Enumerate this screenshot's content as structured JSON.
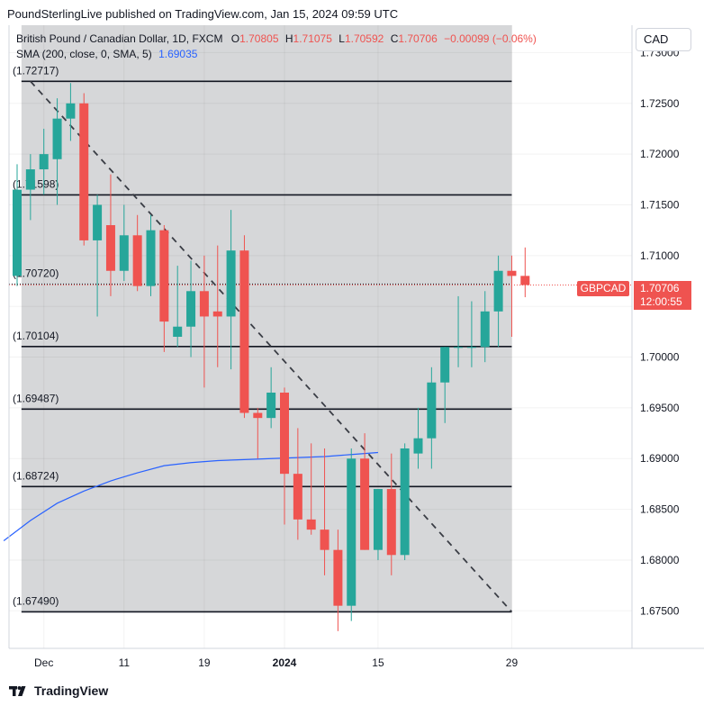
{
  "header": {
    "publisher_line": "PoundSterlingLive published on TradingView.com, Jan 15, 2024 09:59 UTC"
  },
  "legend": {
    "title": "British Pound / Canadian Dollar, 1D, FXCM",
    "o_label": "O",
    "o_value": "1.70805",
    "h_label": "H",
    "h_value": "1.71075",
    "l_label": "L",
    "l_value": "1.70592",
    "c_label": "C",
    "c_value": "1.70706",
    "change": "−0.00099 (−0.06%)",
    "sma_label": "SMA (200, close, 0, SMA, 5)",
    "sma_value": "1.69035"
  },
  "currency_button": "CAD",
  "price_tag": {
    "symbol": "GBPCAD",
    "price": "1.70706",
    "countdown": "12:00:55"
  },
  "footer": {
    "brand": "TradingView"
  },
  "colors": {
    "up": "#26a69a",
    "down": "#ef5350",
    "sma": "#2962ff",
    "shade": "#d6d7d9",
    "level": "#131722"
  },
  "chart_data": {
    "type": "candlestick",
    "y_ticks": [
      "1.73000",
      "1.72500",
      "1.72000",
      "1.71500",
      "1.71000",
      "1.70500",
      "1.70000",
      "1.69500",
      "1.69000",
      "1.68500",
      "1.68000",
      "1.67500"
    ],
    "ylim": [
      1.6713,
      1.7327
    ],
    "x_ticks": [
      {
        "label": "Dec",
        "index": 2
      },
      {
        "label": "11",
        "index": 8
      },
      {
        "label": "19",
        "index": 14
      },
      {
        "label": "2024",
        "index": 20
      },
      {
        "label": "15",
        "index": 27
      },
      {
        "label": "29",
        "index": 37
      }
    ],
    "horizontal_levels": [
      {
        "label": "(1.72717)",
        "value": 1.72717
      },
      {
        "label": "(1.71598)",
        "value": 1.71598
      },
      {
        "label": "(1.70720)",
        "value": 1.7072
      },
      {
        "label": "(1.70104)",
        "value": 1.70104
      },
      {
        "label": "(1.69487)",
        "value": 1.69487
      },
      {
        "label": "(1.68724)",
        "value": 1.68724
      },
      {
        "label": "(1.67490)",
        "value": 1.6749
      }
    ],
    "trendline": {
      "start": {
        "index": 1,
        "value": 1.72717
      },
      "end": {
        "index": 37,
        "value": 1.6749
      }
    },
    "candles": [
      {
        "o": 1.708,
        "h": 1.719,
        "l": 1.707,
        "c": 1.7165
      },
      {
        "o": 1.7165,
        "h": 1.72,
        "l": 1.7135,
        "c": 1.7185
      },
      {
        "o": 1.7185,
        "h": 1.7225,
        "l": 1.716,
        "c": 1.72
      },
      {
        "o": 1.7195,
        "h": 1.7255,
        "l": 1.715,
        "c": 1.7235
      },
      {
        "o": 1.7235,
        "h": 1.727,
        "l": 1.7213,
        "c": 1.725
      },
      {
        "o": 1.725,
        "h": 1.726,
        "l": 1.711,
        "c": 1.7115
      },
      {
        "o": 1.7115,
        "h": 1.716,
        "l": 1.704,
        "c": 1.715
      },
      {
        "o": 1.713,
        "h": 1.718,
        "l": 1.706,
        "c": 1.7085
      },
      {
        "o": 1.7085,
        "h": 1.715,
        "l": 1.7075,
        "c": 1.712
      },
      {
        "o": 1.712,
        "h": 1.714,
        "l": 1.7065,
        "c": 1.707
      },
      {
        "o": 1.707,
        "h": 1.714,
        "l": 1.706,
        "c": 1.7125
      },
      {
        "o": 1.7125,
        "h": 1.713,
        "l": 1.7005,
        "c": 1.7035
      },
      {
        "o": 1.702,
        "h": 1.709,
        "l": 1.701,
        "c": 1.703
      },
      {
        "o": 1.703,
        "h": 1.7095,
        "l": 1.7,
        "c": 1.7065
      },
      {
        "o": 1.7065,
        "h": 1.71,
        "l": 1.697,
        "c": 1.704
      },
      {
        "o": 1.7045,
        "h": 1.711,
        "l": 1.699,
        "c": 1.704
      },
      {
        "o": 1.704,
        "h": 1.7145,
        "l": 1.6988,
        "c": 1.7105
      },
      {
        "o": 1.7105,
        "h": 1.712,
        "l": 1.694,
        "c": 1.6945
      },
      {
        "o": 1.6945,
        "h": 1.695,
        "l": 1.69,
        "c": 1.694
      },
      {
        "o": 1.694,
        "h": 1.699,
        "l": 1.693,
        "c": 1.6965
      },
      {
        "o": 1.6965,
        "h": 1.697,
        "l": 1.6835,
        "c": 1.6885
      },
      {
        "o": 1.6885,
        "h": 1.693,
        "l": 1.682,
        "c": 1.684
      },
      {
        "o": 1.684,
        "h": 1.6915,
        "l": 1.6825,
        "c": 1.683
      },
      {
        "o": 1.683,
        "h": 1.691,
        "l": 1.6785,
        "c": 1.681
      },
      {
        "o": 1.681,
        "h": 1.683,
        "l": 1.673,
        "c": 1.6755
      },
      {
        "o": 1.6755,
        "h": 1.691,
        "l": 1.674,
        "c": 1.69
      },
      {
        "o": 1.69,
        "h": 1.6925,
        "l": 1.681,
        "c": 1.681
      },
      {
        "o": 1.681,
        "h": 1.687,
        "l": 1.68,
        "c": 1.687
      },
      {
        "o": 1.687,
        "h": 1.6905,
        "l": 1.6785,
        "c": 1.6805
      },
      {
        "o": 1.6805,
        "h": 1.6915,
        "l": 1.68,
        "c": 1.691
      },
      {
        "o": 1.6905,
        "h": 1.695,
        "l": 1.689,
        "c": 1.692
      },
      {
        "o": 1.692,
        "h": 1.699,
        "l": 1.689,
        "c": 1.6975
      },
      {
        "o": 1.6975,
        "h": 1.701,
        "l": 1.6935,
        "c": 1.701
      },
      {
        "o": 1.701,
        "h": 1.706,
        "l": 1.699,
        "c": 1.701
      },
      {
        "o": 1.701,
        "h": 1.7055,
        "l": 1.699,
        "c": 1.701
      },
      {
        "o": 1.701,
        "h": 1.7065,
        "l": 1.6995,
        "c": 1.7045
      },
      {
        "o": 1.7045,
        "h": 1.71,
        "l": 1.701,
        "c": 1.7085
      },
      {
        "o": 1.7085,
        "h": 1.71,
        "l": 1.702,
        "c": 1.708
      },
      {
        "o": 1.708,
        "h": 1.7108,
        "l": 1.7059,
        "c": 1.7071
      }
    ],
    "sma": [
      {
        "index": -1,
        "value": 1.6819
      },
      {
        "index": 1,
        "value": 1.6839
      },
      {
        "index": 3,
        "value": 1.6856
      },
      {
        "index": 5,
        "value": 1.6868
      },
      {
        "index": 7,
        "value": 1.6878
      },
      {
        "index": 9,
        "value": 1.6886
      },
      {
        "index": 11,
        "value": 1.6893
      },
      {
        "index": 13,
        "value": 1.6896
      },
      {
        "index": 15,
        "value": 1.6898
      },
      {
        "index": 17,
        "value": 1.6899
      },
      {
        "index": 19,
        "value": 1.69
      },
      {
        "index": 21,
        "value": 1.6901
      },
      {
        "index": 23,
        "value": 1.6902
      },
      {
        "index": 25,
        "value": 1.6904
      },
      {
        "index": 27,
        "value": 1.6906
      }
    ]
  }
}
